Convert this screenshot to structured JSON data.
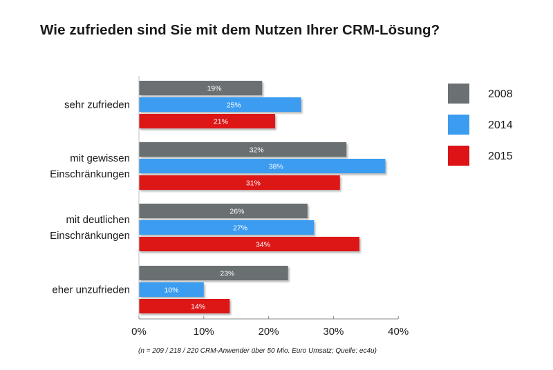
{
  "chart_data": {
    "type": "bar",
    "orientation": "horizontal",
    "title": "Wie zufrieden sind Sie mit dem Nutzen Ihrer CRM-Lösung?",
    "categories": [
      [
        "sehr zufrieden"
      ],
      [
        "mit gewissen",
        "Einschränkungen"
      ],
      [
        "mit deutlichen",
        "Einschränkungen"
      ],
      [
        "eher unzufrieden"
      ]
    ],
    "series": [
      {
        "name": "2008",
        "color": "#6b7072",
        "values": [
          19,
          32,
          26,
          23
        ]
      },
      {
        "name": "2014",
        "color": "#3b9cf0",
        "values": [
          25,
          38,
          27,
          10
        ]
      },
      {
        "name": "2015",
        "color": "#dd1317",
        "values": [
          21,
          31,
          34,
          14
        ]
      }
    ],
    "value_suffix": "%",
    "xlim": [
      0,
      40
    ],
    "xticks": [
      0,
      10,
      20,
      30,
      40
    ],
    "xtick_labels": [
      "0%",
      "10%",
      "20%",
      "30%",
      "40%"
    ],
    "legend_position": "right",
    "grid": false
  },
  "source": "(n = 209 / 218 / 220 CRM-Anwender über 50 Mio. Euro Umsatz; Quelle: ec4u)"
}
